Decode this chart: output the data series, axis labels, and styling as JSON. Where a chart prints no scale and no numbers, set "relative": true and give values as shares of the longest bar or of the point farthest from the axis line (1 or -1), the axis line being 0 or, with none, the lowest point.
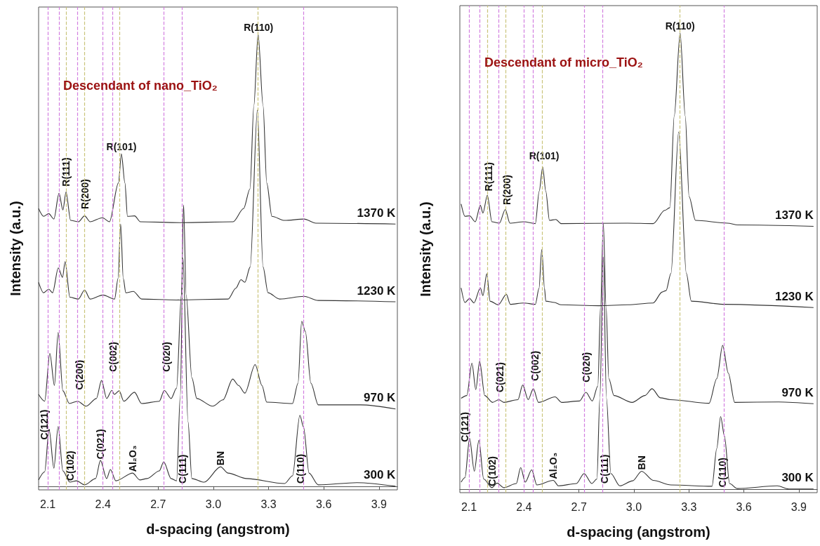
{
  "chart_data": [
    {
      "type": "line",
      "title": "Descendant of nano_TiO₂",
      "xlabel": "d-spacing (angstrom)",
      "ylabel": "Intensity (a.u.)",
      "relative": true,
      "marker": "none",
      "xlim": [
        2.05,
        4.0
      ],
      "xticks": [
        2.1,
        2.4,
        2.7,
        {
          "value": 3,
          "label": "3.0"
        },
        3.3,
        3.6,
        3.9
      ],
      "series": [
        {
          "name": "1370 K",
          "color": "#333333",
          "x": [
            2.05,
            2.077,
            2.105,
            2.133,
            2.161,
            2.182,
            2.199,
            2.224,
            2.266,
            2.3,
            2.33,
            2.397,
            2.435,
            2.484,
            2.5,
            2.519,
            2.533,
            2.572,
            2.603,
            2.826,
            3.107,
            3.164,
            3.199,
            3.22,
            3.243,
            3.27,
            3.29,
            3.318,
            3.387,
            3.493,
            3.557,
            3.99
          ],
          "values": [
            0.614,
            0.597,
            0.603,
            0.591,
            0.648,
            0.611,
            0.651,
            0.588,
            0.585,
            0.598,
            0.585,
            0.594,
            0.585,
            0.671,
            0.735,
            0.671,
            0.597,
            0.598,
            0.585,
            0.583,
            0.585,
            0.614,
            0.658,
            0.842,
            1,
            0.842,
            0.671,
            0.597,
            0.588,
            0.591,
            0.582,
            0.58
          ]
        },
        {
          "name": "1230 K",
          "color": "#333333",
          "x": [
            2.05,
            2.077,
            2.105,
            2.126,
            2.157,
            2.18,
            2.194,
            2.22,
            2.266,
            2.3,
            2.33,
            2.4,
            2.463,
            2.482,
            2.496,
            2.51,
            2.524,
            2.565,
            2.61,
            2.8,
            3.08,
            3.122,
            3.15,
            3.171,
            3.2,
            3.239,
            3.27,
            3.297,
            3.36,
            3.493,
            3.57,
            3.99
          ],
          "values": [
            0.451,
            0.428,
            0.436,
            0.428,
            0.483,
            0.462,
            0.497,
            0.418,
            0.414,
            0.434,
            0.414,
            0.423,
            0.414,
            0.46,
            0.58,
            0.46,
            0.428,
            0.431,
            0.414,
            0.412,
            0.414,
            0.438,
            0.457,
            0.451,
            0.485,
            0.832,
            0.485,
            0.428,
            0.414,
            0.42,
            0.411,
            0.408
          ]
        },
        {
          "name": "970 K",
          "color": "#333333",
          "x": [
            2.05,
            2.083,
            2.111,
            2.136,
            2.156,
            2.182,
            2.217,
            2.262,
            2.308,
            2.364,
            2.392,
            2.42,
            2.448,
            2.462,
            2.488,
            2.513,
            2.571,
            2.61,
            2.706,
            2.733,
            2.77,
            2.8,
            2.826,
            2.838,
            2.852,
            2.883,
            2.91,
            2.996,
            3.052,
            3.105,
            3.137,
            3.171,
            3.227,
            3.264,
            3.29,
            3.43,
            3.46,
            3.48,
            3.5,
            3.53,
            3.57,
            3.8,
            3.99
          ],
          "values": [
            0.203,
            0.188,
            0.294,
            0.223,
            0.34,
            0.211,
            0.183,
            0.188,
            0.177,
            0.194,
            0.234,
            0.194,
            0.212,
            0.203,
            0.211,
            0.188,
            0.208,
            0.183,
            0.188,
            0.212,
            0.194,
            0.217,
            0.423,
            0.622,
            0.423,
            0.24,
            0.194,
            0.177,
            0.191,
            0.237,
            0.223,
            0.206,
            0.269,
            0.223,
            0.186,
            0.183,
            0.228,
            0.365,
            0.342,
            0.228,
            0.18,
            0.18,
            0.171
          ]
        },
        {
          "name": "300 K",
          "color": "#333333",
          "x": [
            2.05,
            2.083,
            2.107,
            2.133,
            2.156,
            2.182,
            2.22,
            2.256,
            2.3,
            2.36,
            2.386,
            2.42,
            2.44,
            2.47,
            2.561,
            2.6,
            2.64,
            2.706,
            2.73,
            2.77,
            2.8,
            2.82,
            2.835,
            2.862,
            2.883,
            2.95,
            3.039,
            3.08,
            3.18,
            3.387,
            3.43,
            3.47,
            3.49,
            3.52,
            3.57,
            3.78,
            3.99
          ],
          "values": [
            0.014,
            0.032,
            0.126,
            0.04,
            0.132,
            0.034,
            0.009,
            0.012,
            0.003,
            0.017,
            0.057,
            0.017,
            0.037,
            0.012,
            0.029,
            0.014,
            0.017,
            0.034,
            0.054,
            0.017,
            0.012,
            0.2,
            0.505,
            0.143,
            0.017,
            0.009,
            0.043,
            0.029,
            0.017,
            0.006,
            0.023,
            0.157,
            0.131,
            0.029,
            0.003,
            0.008,
            0
          ]
        }
      ],
      "annotations": [
        {
          "text": "R(110)",
          "x": 3.245,
          "y": 1
        },
        {
          "text": "R(101)",
          "x": 2.5,
          "y": 0.735
        },
        {
          "text": "R(111)",
          "x": 2.2,
          "y": 0.66
        },
        {
          "text": "R(200)",
          "x": 2.3,
          "y": 0.61
        },
        {
          "text": "C(200)",
          "x": 2.273,
          "y": 0.21
        },
        {
          "text": "C(002)",
          "x": 2.455,
          "y": 0.25
        },
        {
          "text": "C(020)",
          "x": 2.743,
          "y": 0.25
        },
        {
          "text": "C(121)",
          "x": 2.08,
          "y": 0.1
        },
        {
          "text": "C(102)",
          "x": 2.22,
          "y": 0.009
        },
        {
          "text": "C(021)",
          "x": 2.386,
          "y": 0.057
        },
        {
          "text": "Al₂O₃",
          "x": 2.561,
          "y": 0.029
        },
        {
          "text": "C(111)",
          "x": 2.834,
          "y": 0.003
        },
        {
          "text": "BN",
          "x": 3.039,
          "y": 0.043
        },
        {
          "text": "C(110)",
          "x": 3.473,
          "y": 0.003
        }
      ],
      "ref_lines": [
        {
          "axis": "x",
          "value": 2.105,
          "color": "#d27ee0",
          "line_style": "dashed"
        },
        {
          "axis": "x",
          "value": 2.16,
          "color": "#d27ee0",
          "line_style": "dashed"
        },
        {
          "axis": "x",
          "value": 2.262,
          "color": "#d27ee0",
          "line_style": "dashed"
        },
        {
          "axis": "x",
          "value": 2.4,
          "color": "#d27ee0",
          "line_style": "dashed"
        },
        {
          "axis": "x",
          "value": 2.447,
          "color": "#d27ee0",
          "line_style": "dashed"
        },
        {
          "axis": "x",
          "value": 2.735,
          "color": "#d27ee0",
          "line_style": "dashed"
        },
        {
          "axis": "x",
          "value": 2.835,
          "color": "#d27ee0",
          "line_style": "dashed"
        },
        {
          "axis": "x",
          "value": 3.49,
          "color": "#d27ee0",
          "line_style": "dashed"
        },
        {
          "axis": "x",
          "value": 2.198,
          "color": "#c9c47a",
          "line_style": "dashed"
        },
        {
          "axis": "x",
          "value": 2.3,
          "color": "#c9c47a",
          "line_style": "dashed"
        },
        {
          "axis": "x",
          "value": 2.49,
          "color": "#c9c47a",
          "line_style": "dashed"
        },
        {
          "axis": "x",
          "value": 3.24,
          "color": "#c9c47a",
          "line_style": "dashed"
        }
      ]
    },
    {
      "type": "line",
      "title": "Descendant of micro_TiO₂",
      "xlabel": "d-spacing (angstrom)",
      "ylabel": "Intensity (a.u.)",
      "relative": true,
      "marker": "none",
      "xlim": [
        2.05,
        4.0
      ],
      "xticks": [
        2.1,
        2.4,
        2.7,
        {
          "value": 3,
          "label": "3.0"
        },
        3.3,
        3.6,
        3.9
      ],
      "series": [
        {
          "name": "1370 K",
          "color": "#333333",
          "x": [
            2.057,
            2.078,
            2.103,
            2.134,
            2.162,
            2.176,
            2.2,
            2.225,
            2.266,
            2.298,
            2.323,
            2.4,
            2.462,
            2.483,
            2.502,
            2.519,
            2.539,
            2.574,
            2.602,
            2.966,
            3.105,
            3.168,
            3.196,
            3.22,
            3.252,
            3.28,
            3.301,
            3.336,
            3.511,
            3.567,
            3.98
          ],
          "values": [
            0.625,
            0.598,
            0.599,
            0.586,
            0.622,
            0.605,
            0.644,
            0.586,
            0.583,
            0.613,
            0.583,
            0.586,
            0.582,
            0.653,
            0.706,
            0.653,
            0.589,
            0.591,
            0.582,
            0.583,
            0.582,
            0.611,
            0.617,
            0.818,
            1,
            0.818,
            0.641,
            0.589,
            0.583,
            0.579,
            0.576
          ]
        },
        {
          "name": "1230 K",
          "color": "#333333",
          "x": [
            2.057,
            2.078,
            2.103,
            2.127,
            2.162,
            2.176,
            2.197,
            2.215,
            2.26,
            2.304,
            2.325,
            2.398,
            2.462,
            2.482,
            2.497,
            2.512,
            2.519,
            2.567,
            2.602,
            2.81,
            2.966,
            3.105,
            3.154,
            3.175,
            3.202,
            3.244,
            3.286,
            3.313,
            3.495,
            3.98
          ],
          "values": [
            0.441,
            0.409,
            0.418,
            0.408,
            0.441,
            0.424,
            0.472,
            0.412,
            0.404,
            0.427,
            0.405,
            0.408,
            0.405,
            0.44,
            0.525,
            0.44,
            0.412,
            0.409,
            0.404,
            0.402,
            0.404,
            0.408,
            0.432,
            0.435,
            0.473,
            0.783,
            0.473,
            0.412,
            0.405,
            0.398
          ]
        },
        {
          "name": "970 K",
          "color": "#333333",
          "x": [
            2.057,
            2.088,
            2.116,
            2.137,
            2.158,
            2.186,
            2.228,
            2.263,
            2.29,
            2.367,
            2.393,
            2.423,
            2.451,
            2.479,
            2.57,
            2.605,
            2.703,
            2.738,
            2.773,
            2.803,
            2.818,
            2.833,
            2.848,
            2.863,
            2.891,
            2.99,
            3.06,
            3.099,
            3.144,
            3.2,
            3.41,
            3.452,
            3.484,
            3.515,
            3.55,
            3.79,
            3.98
          ],
          "values": [
            0.199,
            0.205,
            0.276,
            0.218,
            0.28,
            0.205,
            0.19,
            0.196,
            0.19,
            0.196,
            0.228,
            0.196,
            0.22,
            0.19,
            0.202,
            0.19,
            0.193,
            0.212,
            0.193,
            0.226,
            0.4,
            0.582,
            0.4,
            0.242,
            0.205,
            0.19,
            0.205,
            0.22,
            0.2,
            0.196,
            0.188,
            0.242,
            0.315,
            0.254,
            0.19,
            0.191,
            0.187
          ]
        },
        {
          "name": "300 K",
          "color": "#333333",
          "x": [
            2.057,
            2.078,
            2.103,
            2.129,
            2.154,
            2.18,
            2.225,
            2.253,
            2.29,
            2.358,
            2.382,
            2.407,
            2.442,
            2.47,
            2.56,
            2.588,
            2.686,
            2.728,
            2.77,
            2.798,
            2.814,
            2.833,
            2.85,
            2.874,
            2.923,
            2.993,
            3.042,
            3.105,
            3.202,
            3.426,
            3.452,
            3.473,
            3.494,
            3.522,
            3.564,
            3.782,
            3.845,
            3.98
          ],
          "values": [
            0.015,
            0.025,
            0.111,
            0.039,
            0.107,
            0.022,
            0.003,
            0.013,
            0.003,
            0.012,
            0.047,
            0.015,
            0.042,
            0.009,
            0.019,
            0.007,
            0.012,
            0.034,
            0.012,
            0.022,
            0.199,
            0.509,
            0.199,
            0.034,
            0.007,
            0.018,
            0.039,
            0.019,
            0.009,
            0.006,
            0.089,
            0.159,
            0.116,
            0.012,
            0.001,
            0.007,
            0,
            0
          ]
        }
      ],
      "annotations": [
        {
          "text": "R(110)",
          "x": 3.252,
          "y": 1
        },
        {
          "text": "R(101)",
          "x": 2.51,
          "y": 0.715
        },
        {
          "text": "R(111)",
          "x": 2.208,
          "y": 0.65
        },
        {
          "text": "R(200)",
          "x": 2.305,
          "y": 0.62
        },
        {
          "text": "C(021)",
          "x": 2.267,
          "y": 0.209
        },
        {
          "text": "C(002)",
          "x": 2.46,
          "y": 0.234
        },
        {
          "text": "C(020)",
          "x": 2.739,
          "y": 0.231
        },
        {
          "text": "C(121)",
          "x": 2.078,
          "y": 0.1
        },
        {
          "text": "C(102)",
          "x": 2.225,
          "y": 0.003
        },
        {
          "text": "Al₂O₃",
          "x": 2.56,
          "y": 0.019
        },
        {
          "text": "C(111)",
          "x": 2.84,
          "y": 0.009
        },
        {
          "text": "BN",
          "x": 3.042,
          "y": 0.039
        },
        {
          "text": "C(110)",
          "x": 3.483,
          "y": 0.001
        }
      ],
      "ref_lines": [
        {
          "axis": "x",
          "value": 2.103,
          "color": "#d27ee0",
          "line_style": "dashed"
        },
        {
          "axis": "x",
          "value": 2.16,
          "color": "#d27ee0",
          "line_style": "dashed"
        },
        {
          "axis": "x",
          "value": 2.262,
          "color": "#d27ee0",
          "line_style": "dashed"
        },
        {
          "axis": "x",
          "value": 2.4,
          "color": "#d27ee0",
          "line_style": "dashed"
        },
        {
          "axis": "x",
          "value": 2.45,
          "color": "#d27ee0",
          "line_style": "dashed"
        },
        {
          "axis": "x",
          "value": 2.733,
          "color": "#d27ee0",
          "line_style": "dashed"
        },
        {
          "axis": "x",
          "value": 2.835,
          "color": "#d27ee0",
          "line_style": "dashed"
        },
        {
          "axis": "x",
          "value": 3.49,
          "color": "#d27ee0",
          "line_style": "dashed"
        },
        {
          "axis": "x",
          "value": 2.2,
          "color": "#c9c47a",
          "line_style": "dashed"
        },
        {
          "axis": "x",
          "value": 2.3,
          "color": "#c9c47a",
          "line_style": "dashed"
        },
        {
          "axis": "x",
          "value": 2.5,
          "color": "#c9c47a",
          "line_style": "dashed"
        },
        {
          "axis": "x",
          "value": 3.245,
          "color": "#c9c47a",
          "line_style": "dashed"
        }
      ]
    }
  ]
}
